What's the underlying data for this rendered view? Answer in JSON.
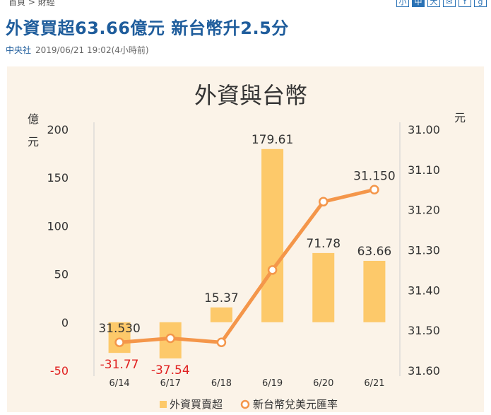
{
  "breadcrumb": {
    "home": "首頁",
    "sep": ">",
    "section": "財經"
  },
  "toolbar": {
    "font_small": "小",
    "font_medium": "中",
    "font_large": "大"
  },
  "article": {
    "title": "外資買超63.66億元 新台幣升2.5分",
    "source": "中央社",
    "datetime": "2019/06/21 19:02(4小時前)"
  },
  "colors": {
    "bar": "#fdc96a",
    "line": "#f4964a",
    "negative": "#e02020",
    "title": "#1f5d9c",
    "background": "#fbf3e8"
  },
  "chart_data": {
    "type": "bar",
    "title": "外資與台幣",
    "categories": [
      "6/14",
      "6/17",
      "6/18",
      "6/19",
      "6/20",
      "6/21"
    ],
    "ylabel_left": "億元",
    "ylabel_right": "元",
    "ylim_left": [
      -50,
      200
    ],
    "yticks_left": [
      "200",
      "150",
      "100",
      "50",
      "0",
      "-50"
    ],
    "ylim_right": [
      31.0,
      31.6
    ],
    "yticks_right": [
      "31.00",
      "31.10",
      "31.20",
      "31.30",
      "31.40",
      "31.50",
      "31.60"
    ],
    "right_axis_inverted": true,
    "series": [
      {
        "name": "外資買賣超",
        "type": "bar",
        "values": [
          -31.77,
          -37.54,
          15.37,
          179.61,
          71.78,
          63.66
        ],
        "labels": [
          "-31.77",
          "-37.54",
          "15.37",
          "179.61",
          "71.78",
          "63.66"
        ]
      },
      {
        "name": "新台幣兌美元匯率",
        "type": "line",
        "values": [
          31.53,
          31.52,
          31.53,
          31.35,
          31.18,
          31.15
        ],
        "labels": [
          "31.530",
          "",
          "",
          "",
          "",
          "31.150"
        ]
      }
    ],
    "legend_position": "bottom"
  }
}
